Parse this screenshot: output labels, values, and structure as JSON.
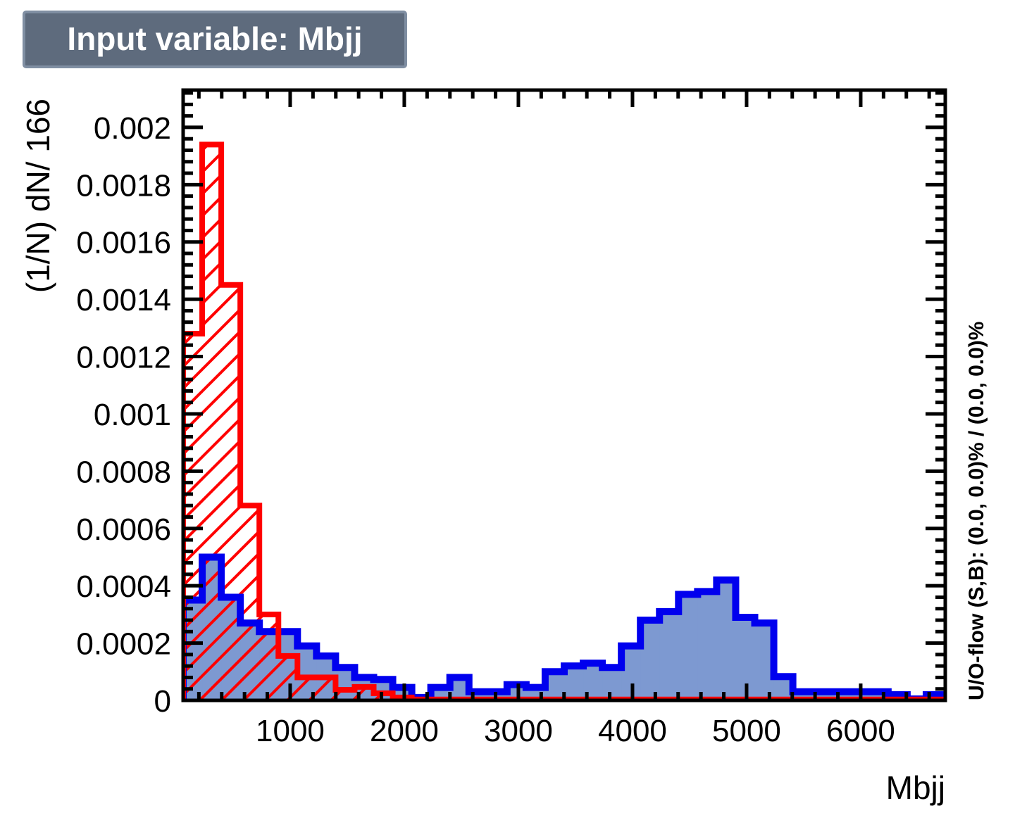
{
  "chart_data": {
    "type": "histogram",
    "title": "Input variable: Mbjj",
    "xlabel": "Mbjj",
    "ylabel": "(1/N) dN/ 166",
    "side_annotation": "U/O-flow (S,B): (0.0, 0.0)% / (0.0, 0.0)%",
    "xlim": [
      62,
      6741
    ],
    "ylim": [
      0,
      0.00213
    ],
    "bins": 40,
    "x_ticks": [
      "1000",
      "2000",
      "3000",
      "4000",
      "5000",
      "6000"
    ],
    "x_tick_values": [
      1000,
      2000,
      3000,
      4000,
      5000,
      6000
    ],
    "y_ticks": [
      "0",
      "0.0002",
      "0.0004",
      "0.0006",
      "0.0008",
      "0.001",
      "0.0012",
      "0.0014",
      "0.0016",
      "0.0018",
      "0.002"
    ],
    "y_tick_values": [
      0,
      0.0002,
      0.0004,
      0.0006,
      0.0008,
      0.001,
      0.0012,
      0.0014,
      0.0016,
      0.0018,
      0.002
    ],
    "grid": false,
    "series": [
      {
        "style": "filled",
        "line_color": "#0000ee",
        "fill_color": "#7d99d1",
        "values": [
          0.00035,
          0.0005,
          0.00036,
          0.00027,
          0.00024,
          0.00024,
          0.00019,
          0.000155,
          0.000115,
          8e-05,
          7.3e-05,
          4.5e-05,
          1e-05,
          4.5e-05,
          8e-05,
          3e-05,
          3e-05,
          5.5e-05,
          4.5e-05,
          0.0001,
          0.00012,
          0.00013,
          0.000115,
          0.00019,
          0.00028,
          0.00031,
          0.00037,
          0.00038,
          0.00042,
          0.00029,
          0.00027,
          8.3e-05,
          3e-05,
          3e-05,
          3e-05,
          3e-05,
          3e-05,
          2e-05,
          5e-06,
          2e-05
        ]
      },
      {
        "style": "hatched",
        "line_color": "#ff0000",
        "fill_color": "#ff0000",
        "values": [
          0.00128,
          0.00194,
          0.00145,
          0.00068,
          0.0003,
          0.000155,
          8e-05,
          8e-05,
          3.7e-05,
          4.7e-05,
          2.5e-05,
          1e-05,
          3e-06,
          3e-06,
          3e-06,
          3e-06,
          3e-06,
          3e-06,
          3e-06,
          3e-06,
          3e-06,
          3e-06,
          3e-06,
          3e-06,
          3e-06,
          3e-06,
          3e-06,
          3e-06,
          3e-06,
          3e-06,
          3e-06,
          3e-06,
          3e-06,
          3e-06,
          3e-06,
          3e-06,
          3e-06,
          3e-06,
          3e-06,
          3e-06
        ]
      }
    ]
  },
  "colors": {
    "title_box_fill": "#5e6b7d",
    "title_box_border": "#7f8ea2"
  }
}
